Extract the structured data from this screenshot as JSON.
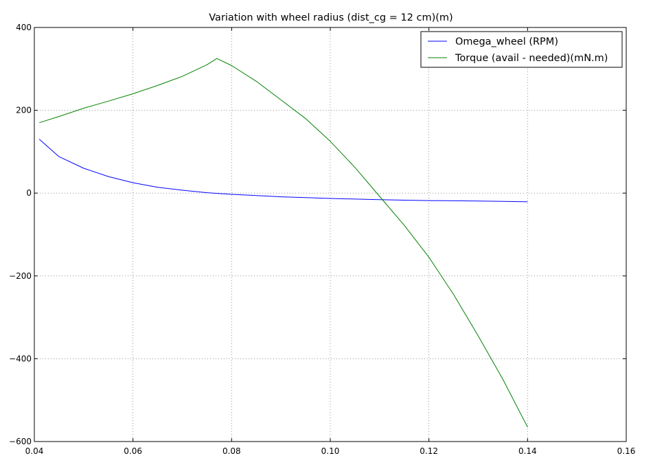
{
  "chart_data": {
    "type": "line",
    "title": "Variation with wheel radius (dist_cg = 12 cm)(m)",
    "xlabel": "",
    "ylabel": "",
    "xlim": [
      0.04,
      0.16
    ],
    "ylim": [
      -600,
      400
    ],
    "x_ticks": [
      0.04,
      0.06,
      0.08,
      0.1,
      0.12,
      0.14,
      0.16
    ],
    "x_tick_labels": [
      "0.04",
      "0.06",
      "0.08",
      "0.10",
      "0.12",
      "0.14",
      "0.16"
    ],
    "y_ticks": [
      400,
      200,
      0,
      -200,
      -400,
      -600
    ],
    "y_tick_labels": [
      "400",
      "200",
      "0",
      "−200",
      "−400",
      "−600"
    ],
    "grid": true,
    "grid_style": "dotted",
    "legend_position": "top-right",
    "series": [
      {
        "name": "Omega_wheel (RPM)",
        "color": "#0000ff",
        "x": [
          0.041,
          0.045,
          0.05,
          0.055,
          0.06,
          0.065,
          0.07,
          0.075,
          0.08,
          0.085,
          0.09,
          0.095,
          0.1,
          0.105,
          0.11,
          0.115,
          0.12,
          0.125,
          0.13,
          0.135,
          0.14
        ],
        "y": [
          130,
          88,
          60,
          40,
          25,
          14,
          7,
          1,
          -3,
          -6,
          -9,
          -11,
          -13,
          -14.5,
          -16,
          -17,
          -18,
          -18.5,
          -19,
          -20,
          -21
        ]
      },
      {
        "name": "Torque (avail - needed)(mN.m)",
        "color": "#008000",
        "x": [
          0.041,
          0.045,
          0.05,
          0.055,
          0.06,
          0.065,
          0.07,
          0.075,
          0.077,
          0.08,
          0.085,
          0.09,
          0.095,
          0.1,
          0.105,
          0.11,
          0.115,
          0.12,
          0.125,
          0.13,
          0.135,
          0.14
        ],
        "y": [
          170,
          185,
          205,
          222,
          240,
          260,
          282,
          310,
          325,
          308,
          270,
          225,
          180,
          125,
          62,
          -8,
          -78,
          -155,
          -245,
          -345,
          -450,
          -565
        ]
      }
    ]
  }
}
